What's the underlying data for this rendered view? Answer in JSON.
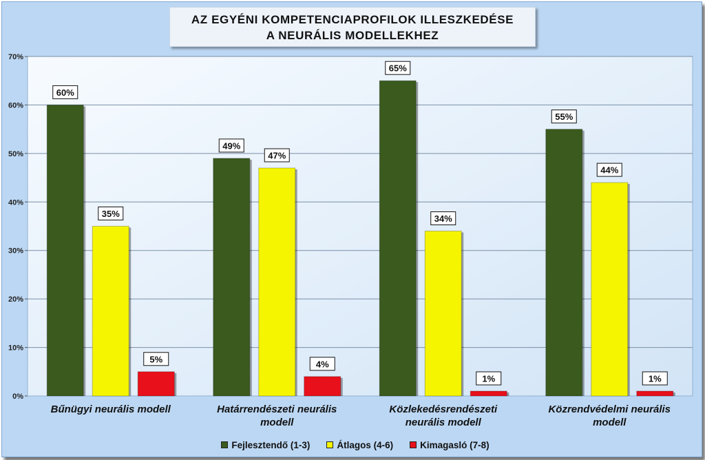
{
  "chart_data": {
    "type": "bar",
    "title": "AZ EGYÉNI KOMPETENCIAPROFILOK ILLESZKEDÉSE",
    "subtitle": "A NEURÁLIS MODELLEKHEZ",
    "categories": [
      [
        "Bűnügyi neurális modell"
      ],
      [
        "Határrendészeti neurális",
        "modell"
      ],
      [
        "Közlekedésrendészeti",
        "neurális modell"
      ],
      [
        "Közrendvédelmi neurális",
        "modell"
      ]
    ],
    "series": [
      {
        "name": "Fejlesztendő (1-3)",
        "color": "#3a5a1e",
        "values": [
          60,
          49,
          65,
          55
        ],
        "labels": [
          "60%",
          "49%",
          "65%",
          "55%"
        ]
      },
      {
        "name": "Átlagos (4-6)",
        "color": "#f5f500",
        "values": [
          35,
          47,
          34,
          44
        ],
        "labels": [
          "35%",
          "47%",
          "34%",
          "44%"
        ]
      },
      {
        "name": "Kimagasló (7-8)",
        "color": "#e8101a",
        "values": [
          5,
          4,
          1,
          1
        ],
        "labels": [
          "5%",
          "4%",
          "1%",
          "1%"
        ]
      }
    ],
    "yticks": [
      "0%",
      "10%",
      "20%",
      "30%",
      "40%",
      "50%",
      "60%",
      "70%"
    ],
    "ylim": [
      0,
      70
    ],
    "grid": true,
    "legend_position": "bottom"
  }
}
